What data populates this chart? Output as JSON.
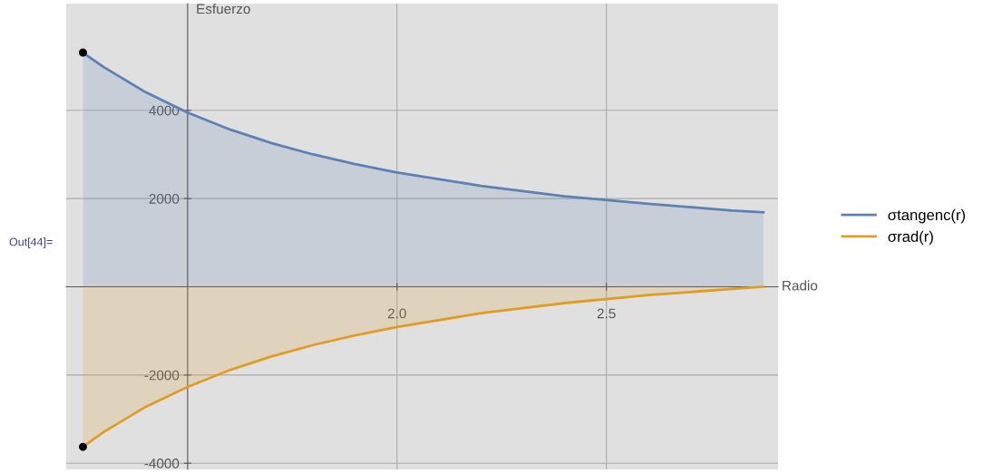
{
  "chart_data": {
    "type": "area",
    "xlabel": "Radio",
    "ylabel": "Esfuerzo",
    "x": [
      1.25,
      1.3,
      1.4,
      1.5,
      1.6,
      1.7,
      1.8,
      1.9,
      2.0,
      2.2,
      2.4,
      2.6,
      2.8,
      2.875
    ],
    "series": [
      {
        "name": "σtangenc(r)",
        "color": "#5e81b5",
        "values": [
          5310,
          4980,
          4410,
          3950,
          3570,
          3260,
          3000,
          2780,
          2590,
          2290,
          2050,
          1880,
          1730,
          1690
        ]
      },
      {
        "name": "σrad(r)",
        "color": "#e19c24",
        "values": [
          -3630,
          -3290,
          -2720,
          -2270,
          -1890,
          -1580,
          -1320,
          -1100,
          -910,
          -600,
          -370,
          -190,
          -50,
          0
        ]
      },
      {
        "type": "scatter",
        "color": "#000000",
        "x": [
          1.25,
          1.25
        ],
        "values": [
          5310,
          -3630
        ]
      }
    ],
    "xlim": [
      1.21,
      2.91
    ],
    "ylim": [
      -4140,
      6420
    ],
    "xticks": [
      {
        "value": 2.0,
        "label": "2.0"
      },
      {
        "value": 2.5,
        "label": "2.5"
      }
    ],
    "yticks": [
      -4000,
      -2000,
      2000,
      4000
    ],
    "grid": true,
    "legend": "right",
    "annotations": [
      "Out[44]="
    ]
  }
}
